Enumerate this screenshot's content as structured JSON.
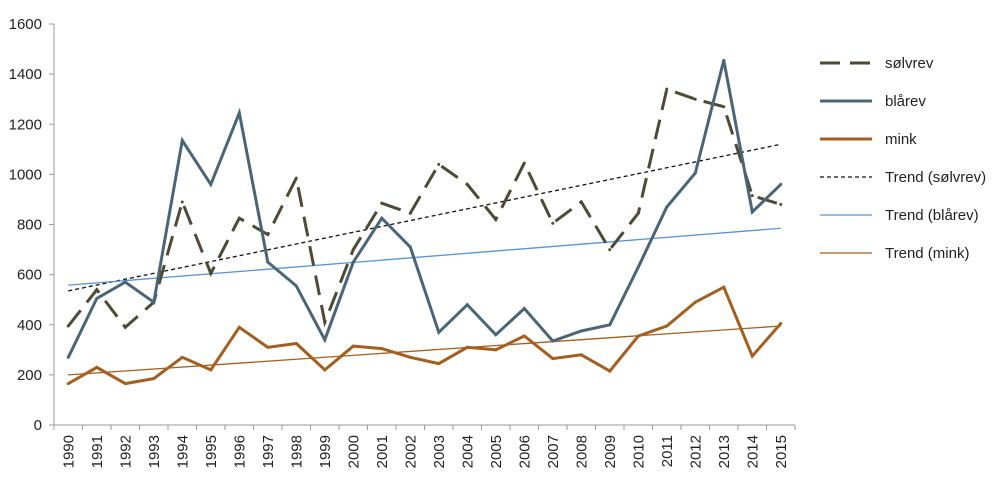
{
  "chart_data": {
    "type": "line",
    "title": "",
    "xlabel": "",
    "ylabel": "",
    "ylim": [
      0,
      1600
    ],
    "yticks": [
      0,
      200,
      400,
      600,
      800,
      1000,
      1200,
      1400,
      1600
    ],
    "categories": [
      "1990",
      "1991",
      "1992",
      "1993",
      "1994",
      "1995",
      "1996",
      "1997",
      "1998",
      "1999",
      "2000",
      "2001",
      "2002",
      "2003",
      "2004",
      "2005",
      "2006",
      "2007",
      "2008",
      "2009",
      "2010",
      "2011",
      "2012",
      "2013",
      "2014",
      "2015"
    ],
    "series": [
      {
        "name": "sølvrev",
        "style": "dashed",
        "color": "#4d4a36",
        "values": [
          395,
          540,
          390,
          490,
          890,
          605,
          825,
          760,
          985,
          410,
          700,
          885,
          845,
          1040,
          960,
          820,
          1045,
          805,
          890,
          700,
          845,
          1340,
          1300,
          1270,
          915,
          880
        ]
      },
      {
        "name": "blårev",
        "style": "solid",
        "color": "#4a6676",
        "values": [
          270,
          505,
          570,
          490,
          1135,
          960,
          1245,
          650,
          555,
          340,
          650,
          825,
          710,
          370,
          480,
          360,
          465,
          335,
          375,
          400,
          630,
          870,
          1005,
          1455,
          850,
          960
        ]
      },
      {
        "name": "mink",
        "style": "solid",
        "color": "#a35e20",
        "values": [
          165,
          230,
          165,
          185,
          270,
          220,
          390,
          310,
          325,
          220,
          315,
          305,
          270,
          245,
          310,
          300,
          355,
          265,
          280,
          215,
          355,
          395,
          490,
          550,
          275,
          405
        ]
      }
    ],
    "trends": [
      {
        "name": "Trend (sølvrev)",
        "style": "dotted",
        "color": "#111111",
        "start": 535,
        "end": 1120
      },
      {
        "name": "Trend (blårev)",
        "style": "solid",
        "color": "#5a93cf",
        "start": 558,
        "end": 785
      },
      {
        "name": "Trend (mink)",
        "style": "solid",
        "color": "#a35e20",
        "start": 200,
        "end": 395
      }
    ],
    "legend": {
      "position": "right",
      "entries": [
        "sølvrev",
        "blårev",
        "mink",
        "Trend (sølvrev)",
        "Trend (blårev)",
        "Trend (mink)"
      ]
    },
    "grid": false
  }
}
